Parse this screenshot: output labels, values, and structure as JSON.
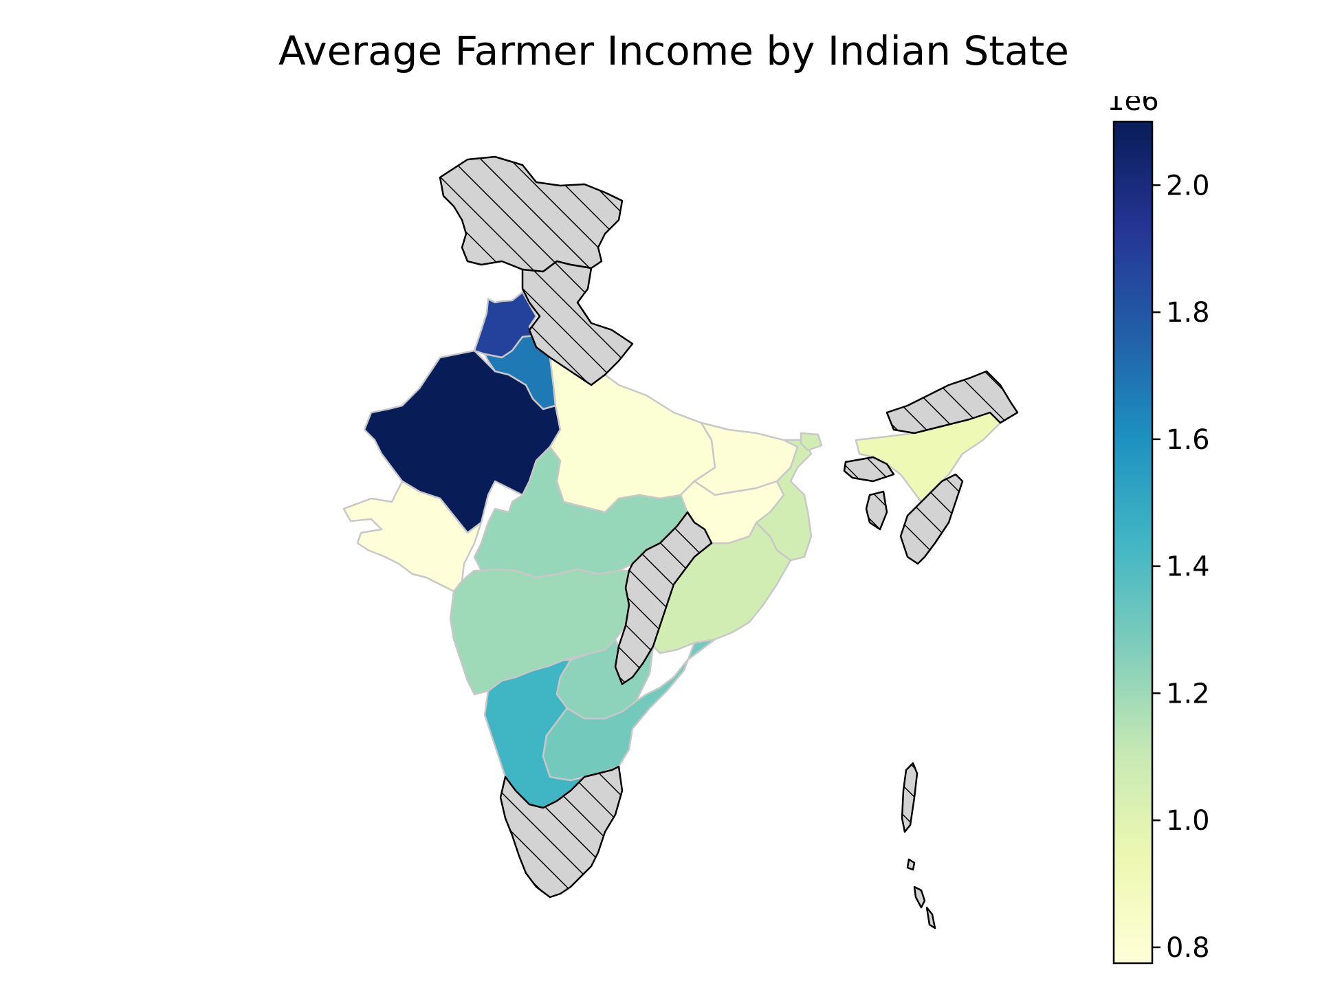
{
  "title": "Average Farmer Income by Indian State",
  "colormap": {
    "name": "YlGnBu",
    "stops": [
      "#ffffd9",
      "#edf8b1",
      "#c7e9b4",
      "#7fcdbb",
      "#41b6c4",
      "#1d91c0",
      "#225ea8",
      "#253494",
      "#081d58"
    ],
    "min": 775000,
    "max": 2100000
  },
  "colorbar": {
    "multiplier": "1e6",
    "ticks": [
      {
        "value": 800000,
        "label": "0.8"
      },
      {
        "value": 1000000,
        "label": "1.0"
      },
      {
        "value": 1200000,
        "label": "1.2"
      },
      {
        "value": 1400000,
        "label": "1.4"
      },
      {
        "value": 1600000,
        "label": "1.6"
      },
      {
        "value": 1800000,
        "label": "1.8"
      },
      {
        "value": 2000000,
        "label": "2.0"
      }
    ]
  },
  "missing_style": {
    "fill": "#d3d3d3",
    "hatch": "diagonal",
    "edge": "#000000"
  },
  "regions": [
    {
      "id": "rajasthan",
      "value": 2100000
    },
    {
      "id": "punjab",
      "value": 1880000
    },
    {
      "id": "haryana",
      "value": 1680000
    },
    {
      "id": "karnataka",
      "value": 1440000
    },
    {
      "id": "andhra-pradesh",
      "value": 1300000
    },
    {
      "id": "madhya-pradesh",
      "value": 1220000
    },
    {
      "id": "maharashtra",
      "value": 1200000
    },
    {
      "id": "telangana",
      "value": 1240000
    },
    {
      "id": "odisha",
      "value": 1060000
    },
    {
      "id": "west-bengal",
      "value": 1060000
    },
    {
      "id": "sikkim",
      "value": 1060000
    },
    {
      "id": "assam",
      "value": 920000
    },
    {
      "id": "uttar-pradesh",
      "value": 800000
    },
    {
      "id": "bihar",
      "value": 790000
    },
    {
      "id": "jharkhand",
      "value": 785000
    },
    {
      "id": "gujarat",
      "value": 780000
    },
    {
      "id": "jammu-kashmir",
      "value": null
    },
    {
      "id": "himachal-uttarakhand",
      "value": null
    },
    {
      "id": "chhattisgarh",
      "value": null
    },
    {
      "id": "kerala-tamil-nadu",
      "value": null
    },
    {
      "id": "arunachal-pradesh",
      "value": null
    },
    {
      "id": "meghalaya",
      "value": null
    },
    {
      "id": "northeast-south",
      "value": null
    },
    {
      "id": "tripura",
      "value": null
    },
    {
      "id": "islands",
      "value": null
    }
  ]
}
